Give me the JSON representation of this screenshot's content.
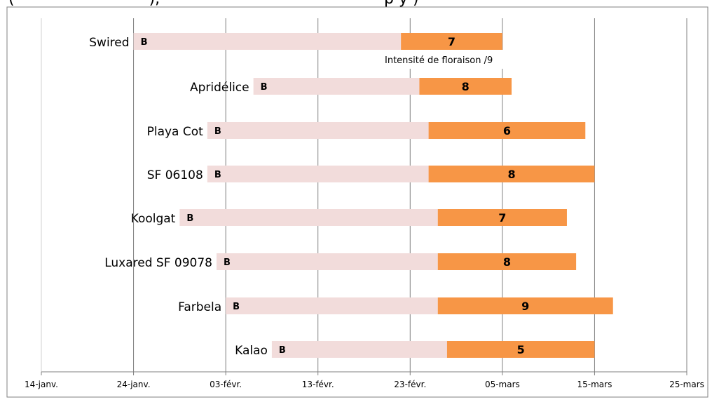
{
  "title_fragment": {
    "left": "(",
    "middle": "),",
    "right": "p                      y     )"
  },
  "annotation": "Intensité de floraison /9",
  "chart_data": {
    "type": "bar",
    "orientation": "horizontal",
    "stacked": true,
    "title": "",
    "xlabel": "",
    "ylabel": "",
    "x_axis": {
      "ticks": [
        "14-janv.",
        "24-janv.",
        "03-févr.",
        "13-févr.",
        "23-févr.",
        "05-mars",
        "15-mars",
        "25-mars"
      ],
      "tick_day_of_year": [
        14,
        24,
        34,
        44,
        54,
        64,
        74,
        84
      ],
      "range_day_of_year": [
        14,
        84
      ]
    },
    "grid": "vertical",
    "colors": {
      "bud_phase": "#f2dcdb",
      "flowering_phase": "#f79646",
      "gridline": "#808080"
    },
    "bud_label": "B",
    "series_order": [
      "bud",
      "flowering"
    ],
    "categories": [
      "Swired",
      "Apridélice",
      "Playa Cot",
      "SF 06108",
      "Koolgat",
      "Luxared SF 09078",
      "Farbela",
      "Kalao"
    ],
    "bars": [
      {
        "name": "Swired",
        "bud_start": "24-janv.",
        "flower_start": "22-févr.",
        "flower_end": "05-mars",
        "bud_start_doy": 24,
        "flower_start_doy": 53,
        "flower_end_doy": 64,
        "intensity": 7
      },
      {
        "name": "Apridélice",
        "bud_start": "06-févr.",
        "flower_start": "24-févr.",
        "flower_end": "06-mars",
        "bud_start_doy": 37,
        "flower_start_doy": 55,
        "flower_end_doy": 65,
        "intensity": 8
      },
      {
        "name": "Playa Cot",
        "bud_start": "01-févr.",
        "flower_start": "25-févr.",
        "flower_end": "14-mars",
        "bud_start_doy": 32,
        "flower_start_doy": 56,
        "flower_end_doy": 73,
        "intensity": 6
      },
      {
        "name": "SF 06108",
        "bud_start": "01-févr.",
        "flower_start": "25-févr.",
        "flower_end": "15-mars",
        "bud_start_doy": 32,
        "flower_start_doy": 56,
        "flower_end_doy": 74,
        "intensity": 8
      },
      {
        "name": "Koolgat",
        "bud_start": "29-janv.",
        "flower_start": "26-févr.",
        "flower_end": "12-mars",
        "bud_start_doy": 29,
        "flower_start_doy": 57,
        "flower_end_doy": 71,
        "intensity": 7
      },
      {
        "name": "Luxared SF 09078",
        "bud_start": "02-févr.",
        "flower_start": "26-févr.",
        "flower_end": "13-mars",
        "bud_start_doy": 33,
        "flower_start_doy": 57,
        "flower_end_doy": 72,
        "intensity": 8
      },
      {
        "name": "Farbela",
        "bud_start": "03-févr.",
        "flower_start": "26-févr.",
        "flower_end": "17-mars",
        "bud_start_doy": 34,
        "flower_start_doy": 57,
        "flower_end_doy": 76,
        "intensity": 9
      },
      {
        "name": "Kalao",
        "bud_start": "08-févr.",
        "flower_start": "27-févr.",
        "flower_end": "15-mars",
        "bud_start_doy": 39,
        "flower_start_doy": 58,
        "flower_end_doy": 74,
        "intensity": 5
      }
    ]
  }
}
